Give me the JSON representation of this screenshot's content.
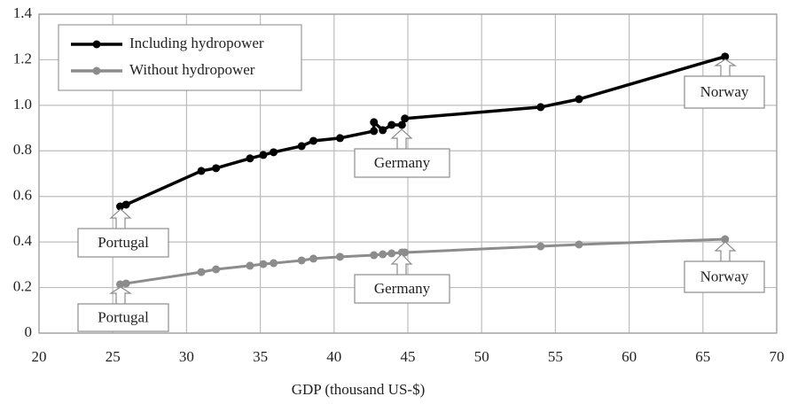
{
  "chart_data": {
    "type": "line",
    "xlabel": "GDP (thousand US-$)",
    "xlim": [
      20,
      70
    ],
    "xticks": [
      20,
      25,
      30,
      35,
      40,
      45,
      50,
      55,
      60,
      65,
      70
    ],
    "ylim": [
      0,
      1.4
    ],
    "yticks": [
      0,
      0.2,
      0.4,
      0.6,
      0.8,
      {
        "value": 1,
        "label": "1.0"
      },
      1.2,
      1.4
    ],
    "grid": true,
    "legend": "upper left",
    "series": [
      {
        "name": "Including hydropower",
        "color": "#000000",
        "x": [
          25.5,
          25.9,
          31.0,
          32.0,
          34.3,
          35.2,
          35.9,
          37.8,
          38.6,
          40.4,
          42.7,
          42.7,
          43.3,
          43.9,
          44.6,
          44.8,
          54.0,
          56.6,
          66.5
        ],
        "values": [
          0.556,
          0.564,
          0.712,
          0.724,
          0.767,
          0.782,
          0.794,
          0.821,
          0.844,
          0.856,
          0.887,
          0.926,
          0.891,
          0.914,
          0.914,
          0.942,
          0.992,
          1.027,
          1.214
        ]
      },
      {
        "name": "Without hydropower",
        "color": "#8c8c8c",
        "x": [
          25.5,
          25.9,
          31.0,
          32.0,
          34.3,
          35.2,
          35.9,
          37.8,
          38.6,
          40.4,
          42.7,
          43.3,
          43.9,
          44.6,
          44.8,
          54.0,
          56.6,
          66.5
        ],
        "values": [
          0.214,
          0.218,
          0.268,
          0.28,
          0.296,
          0.303,
          0.307,
          0.319,
          0.327,
          0.335,
          0.342,
          0.346,
          0.35,
          0.354,
          0.354,
          0.381,
          0.389,
          0.412
        ]
      }
    ],
    "annotations": [
      "Portugal",
      "Germany",
      "Norway",
      "Portugal",
      "Germany",
      "Norway"
    ]
  }
}
